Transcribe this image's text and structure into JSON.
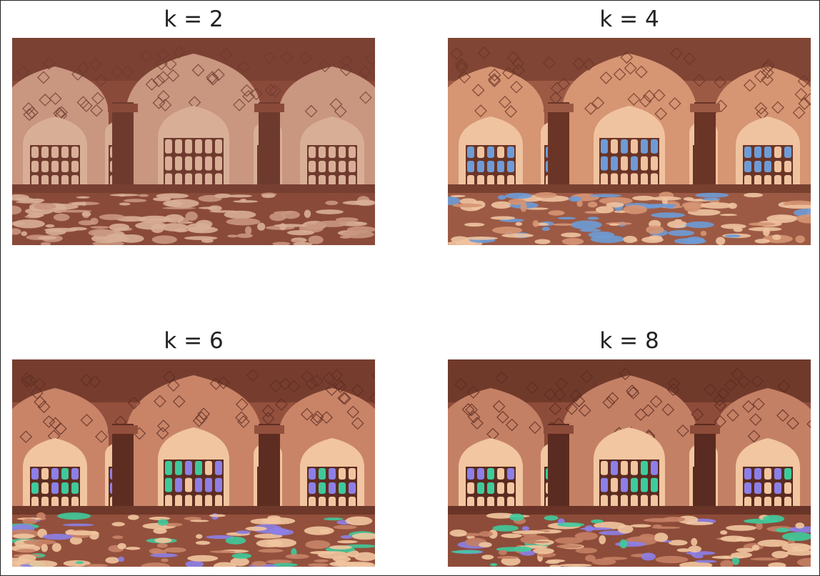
{
  "panels": [
    {
      "title": "k = 2",
      "k": 2,
      "palette": {
        "dark": "#6f3a2e",
        "mid": "#8a4a3a",
        "light": "#c99680",
        "pale": "#d8ae97",
        "accent1": "#c99680",
        "accent2": "#c99680"
      }
    },
    {
      "title": "k = 4",
      "k": 4,
      "palette": {
        "dark": "#6a3426",
        "mid": "#9c5a45",
        "light": "#d69573",
        "pale": "#f0c3a0",
        "accent1": "#6e9bd6",
        "accent2": "#6e9bd6"
      }
    },
    {
      "title": "k = 6",
      "k": 6,
      "palette": {
        "dark": "#5e2d22",
        "mid": "#93503c",
        "light": "#c98468",
        "pale": "#f1c59f",
        "accent1": "#8d7fe6",
        "accent2": "#3fc99a"
      }
    },
    {
      "title": "k = 8",
      "k": 8,
      "palette": {
        "dark": "#5a2b20",
        "mid": "#8d4c39",
        "light": "#c48065",
        "pale": "#f1c6a0",
        "accent1": "#8c7fe8",
        "accent2": "#3ecb9c"
      }
    }
  ]
}
